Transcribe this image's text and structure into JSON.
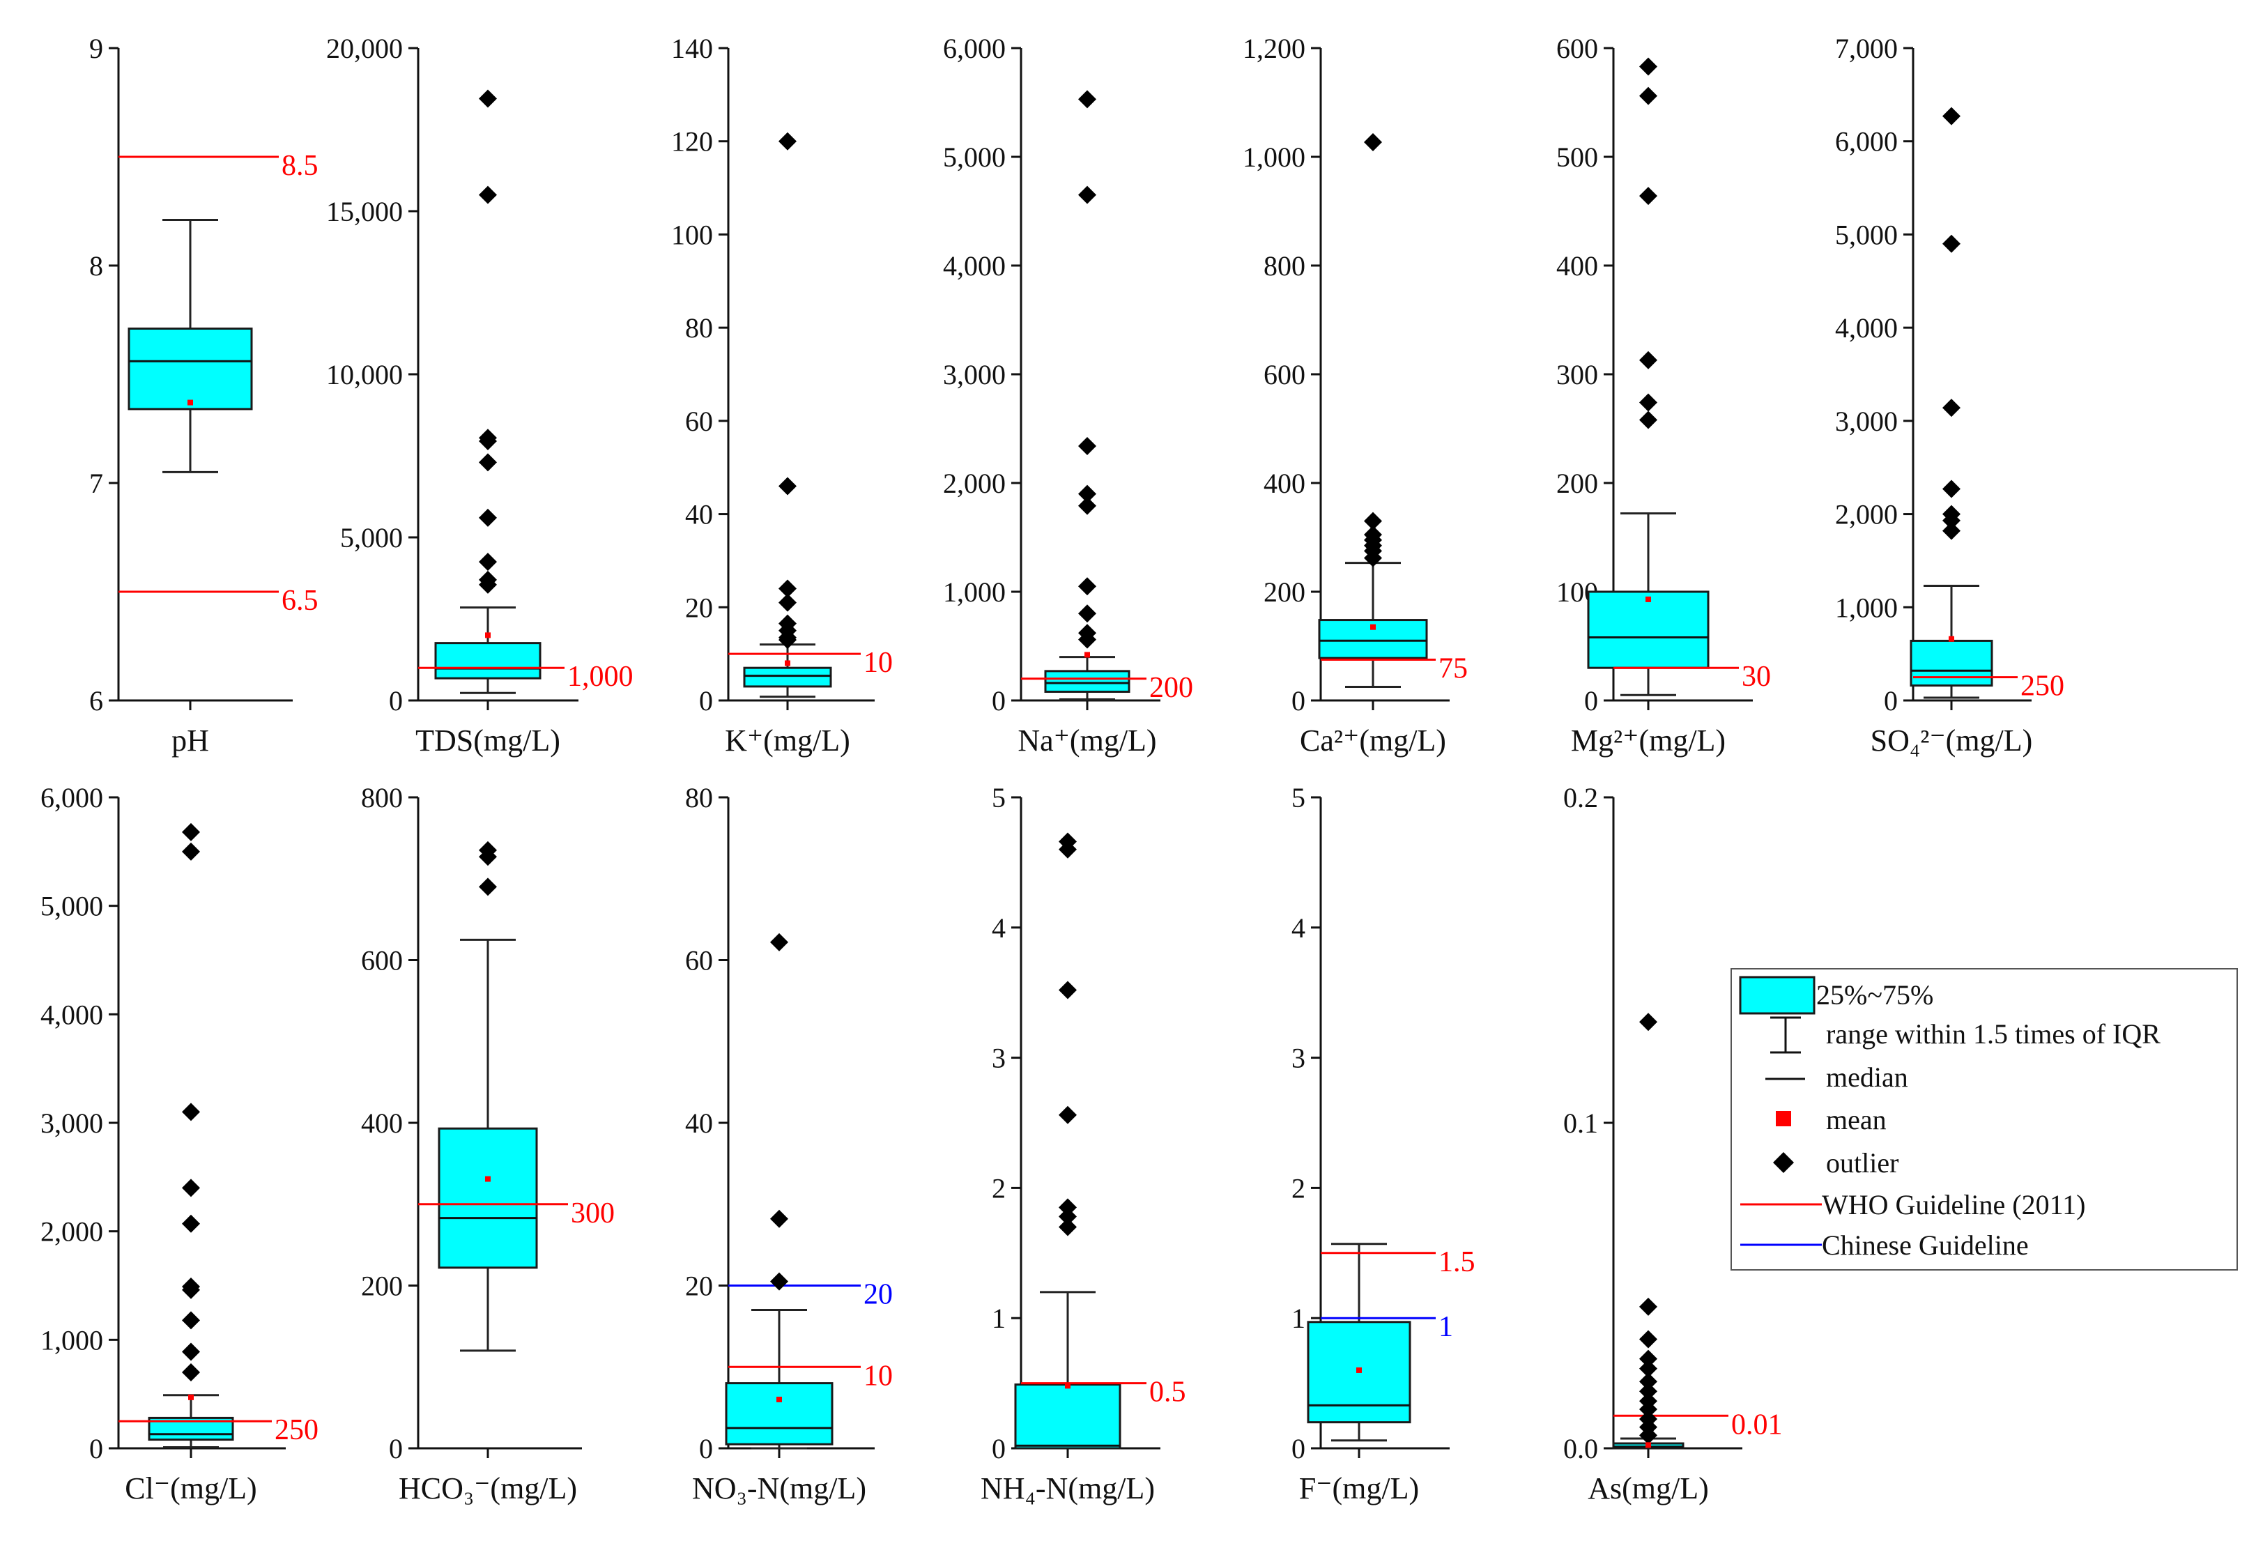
{
  "colors": {
    "box_fill": "#00ffff",
    "box_stroke": "#1a1a1a",
    "mean": "#ff0000",
    "outlier": "#000000",
    "who": "#ff0000",
    "chinese": "#0000ff"
  },
  "legend": {
    "box": "25%~75%",
    "range": "range within 1.5 times of IQR",
    "median": "median",
    "mean": "mean",
    "outlier": "outlier",
    "who": "WHO Guideline (2011)",
    "chinese": "Chinese Guideline"
  },
  "chart_data": [
    {
      "type": "box",
      "xlabel": "pH",
      "ylim": [
        6,
        9
      ],
      "ticks": [
        6,
        7,
        8,
        9
      ],
      "tick_labels": [
        "6",
        "7",
        "8",
        "9"
      ],
      "box": {
        "q1": 7.34,
        "median": 7.56,
        "q3": 7.71,
        "whisker_low": 7.05,
        "whisker_high": 8.21,
        "mean": 7.37
      },
      "outliers": [],
      "guides": [
        {
          "value": 8.5,
          "label": "8.5",
          "kind": "who"
        },
        {
          "value": 6.5,
          "label": "6.5",
          "kind": "who"
        }
      ]
    },
    {
      "type": "box",
      "xlabel": "TDS(mg/L)",
      "ylim": [
        0,
        20000
      ],
      "ticks": [
        0,
        5000,
        10000,
        15000,
        20000
      ],
      "tick_labels": [
        "0",
        "5,000",
        "10,000",
        "15,000",
        "20,000"
      ],
      "box": {
        "q1": 680,
        "median": 980,
        "q3": 1760,
        "whisker_low": 230,
        "whisker_high": 2850,
        "mean": 2000
      },
      "outliers": [
        18450,
        15500,
        8050,
        7950,
        7300,
        5600,
        4250,
        3700,
        3550
      ],
      "guides": [
        {
          "value": 1000,
          "label": "1,000",
          "kind": "who"
        }
      ]
    },
    {
      "type": "box",
      "xlabel": "K⁺(mg/L)",
      "ylim": [
        0,
        140
      ],
      "ticks": [
        0,
        20,
        40,
        60,
        80,
        100,
        120,
        140
      ],
      "tick_labels": [
        "0",
        "20",
        "40",
        "60",
        "80",
        "100",
        "120",
        "140"
      ],
      "box": {
        "q1": 3,
        "median": 5.3,
        "q3": 7,
        "whisker_low": 0.8,
        "whisker_high": 12,
        "mean": 8
      },
      "outliers": [
        120,
        46,
        24,
        21,
        16.5,
        15,
        13.5,
        13
      ],
      "guides": [
        {
          "value": 10,
          "label": "10",
          "kind": "who"
        }
      ]
    },
    {
      "type": "box",
      "xlabel": "Na⁺(mg/L)",
      "ylim": [
        0,
        6000
      ],
      "ticks": [
        0,
        1000,
        2000,
        3000,
        4000,
        5000,
        6000
      ],
      "tick_labels": [
        "0",
        "1,000",
        "2,000",
        "3,000",
        "4,000",
        "5,000",
        "6,000"
      ],
      "box": {
        "q1": 80,
        "median": 160,
        "q3": 270,
        "whisker_low": 10,
        "whisker_high": 400,
        "mean": 420
      },
      "outliers": [
        5530,
        4650,
        2340,
        1900,
        1790,
        1050,
        800,
        620,
        560
      ],
      "guides": [
        {
          "value": 200,
          "label": "200",
          "kind": "who"
        }
      ]
    },
    {
      "type": "box",
      "xlabel": "Ca²⁺(mg/L)",
      "ylim": [
        0,
        1200
      ],
      "ticks": [
        0,
        200,
        400,
        600,
        800,
        1000,
        1200
      ],
      "tick_labels": [
        "0",
        "200",
        "400",
        "600",
        "800",
        "1,000",
        "1,200"
      ],
      "box": {
        "q1": 78,
        "median": 110,
        "q3": 148,
        "whisker_low": 25,
        "whisker_high": 253,
        "mean": 135
      },
      "outliers": [
        1027,
        330,
        305,
        295,
        285,
        275,
        262
      ],
      "guides": [
        {
          "value": 75,
          "label": "75",
          "kind": "who"
        }
      ]
    },
    {
      "type": "box",
      "xlabel": "Mg²⁺(mg/L)",
      "ylim": [
        0,
        600
      ],
      "ticks": [
        0,
        100,
        200,
        300,
        400,
        500,
        600
      ],
      "tick_labels": [
        "0",
        "100",
        "200",
        "300",
        "400",
        "500",
        "600"
      ],
      "box": {
        "q1": 30,
        "median": 58,
        "q3": 100,
        "whisker_low": 5,
        "whisker_high": 172,
        "mean": 93
      },
      "outliers": [
        583,
        556,
        464,
        313,
        274,
        258
      ],
      "guides": [
        {
          "value": 30,
          "label": "30",
          "kind": "who"
        }
      ]
    },
    {
      "type": "box",
      "xlabel": "SO₄²⁻(mg/L)",
      "ylim": [
        0,
        7000
      ],
      "ticks": [
        0,
        1000,
        2000,
        3000,
        4000,
        5000,
        6000,
        7000
      ],
      "tick_labels": [
        "0",
        "1,000",
        "2,000",
        "3,000",
        "4,000",
        "5,000",
        "6,000",
        "7,000"
      ],
      "box": {
        "q1": 160,
        "median": 320,
        "q3": 640,
        "whisker_low": 30,
        "whisker_high": 1230,
        "mean": 660
      },
      "outliers": [
        6270,
        4900,
        3140,
        2270,
        2000,
        1930,
        1820
      ],
      "guides": [
        {
          "value": 250,
          "label": "250",
          "kind": "who"
        }
      ]
    },
    {
      "type": "box",
      "xlabel": "Cl⁻(mg/L)",
      "ylim": [
        0,
        6000
      ],
      "ticks": [
        0,
        1000,
        2000,
        3000,
        4000,
        5000,
        6000
      ],
      "tick_labels": [
        "0",
        "1,000",
        "2,000",
        "3,000",
        "4,000",
        "5,000",
        "6,000"
      ],
      "box": {
        "q1": 80,
        "median": 130,
        "q3": 280,
        "whisker_low": 10,
        "whisker_high": 490,
        "mean": 470
      },
      "outliers": [
        5680,
        5500,
        3100,
        2400,
        2070,
        1490,
        1460,
        1180,
        890,
        700
      ],
      "guides": [
        {
          "value": 250,
          "label": "250",
          "kind": "who"
        }
      ]
    },
    {
      "type": "box",
      "xlabel": "HCO₃⁻(mg/L)",
      "ylim": [
        0,
        800
      ],
      "ticks": [
        0,
        200,
        400,
        600,
        800
      ],
      "tick_labels": [
        "0",
        "200",
        "400",
        "600",
        "800"
      ],
      "box": {
        "q1": 222,
        "median": 283,
        "q3": 393,
        "whisker_low": 120,
        "whisker_high": 625,
        "mean": 331
      },
      "outliers": [
        735,
        727,
        690
      ],
      "guides": [
        {
          "value": 300,
          "label": "300",
          "kind": "who"
        }
      ]
    },
    {
      "type": "box",
      "xlabel": "NO₃-N(mg/L)",
      "ylim": [
        0,
        80
      ],
      "ticks": [
        0,
        20,
        40,
        60,
        80
      ],
      "tick_labels": [
        "0",
        "20",
        "40",
        "60",
        "80"
      ],
      "box": {
        "q1": 0.5,
        "median": 2.5,
        "q3": 8,
        "whisker_low": 0,
        "whisker_high": 17,
        "mean": 6
      },
      "outliers": [
        62.2,
        28.2,
        20.5
      ],
      "guides": [
        {
          "value": 20,
          "label": "20",
          "kind": "chinese"
        },
        {
          "value": 10,
          "label": "10",
          "kind": "who"
        }
      ]
    },
    {
      "type": "box",
      "xlabel": "NH₄-N(mg/L)",
      "ylim": [
        0,
        5
      ],
      "ticks": [
        0,
        1,
        2,
        3,
        4,
        5
      ],
      "tick_labels": [
        "0",
        "1",
        "2",
        "3",
        "4",
        "5"
      ],
      "box": {
        "q1": 0,
        "median": 0.02,
        "q3": 0.49,
        "whisker_low": 0,
        "whisker_high": 1.2,
        "mean": 0.48
      },
      "outliers": [
        4.66,
        4.6,
        3.52,
        2.56,
        1.85,
        1.78,
        1.7
      ],
      "guides": [
        {
          "value": 0.5,
          "label": "0.5",
          "kind": "who"
        }
      ]
    },
    {
      "type": "box",
      "xlabel": "F⁻(mg/L)",
      "ylim": [
        0,
        5
      ],
      "ticks": [
        0,
        1,
        2,
        3,
        4,
        5
      ],
      "tick_labels": [
        "0",
        "1",
        "2",
        "3",
        "4",
        "5"
      ],
      "box": {
        "q1": 0.2,
        "median": 0.33,
        "q3": 0.97,
        "whisker_low": 0.06,
        "whisker_high": 1.57,
        "mean": 0.6
      },
      "outliers": [],
      "guides": [
        {
          "value": 1.5,
          "label": "1.5",
          "kind": "who"
        },
        {
          "value": 1,
          "label": "1",
          "kind": "chinese"
        }
      ]
    },
    {
      "type": "box",
      "xlabel": "As(mg/L)",
      "ylim": [
        0,
        0.2
      ],
      "ticks": [
        0,
        0.1,
        0.2
      ],
      "tick_labels": [
        "0.0",
        "0.1",
        "0.2"
      ],
      "box": {
        "q1": 0,
        "median": 0.0005,
        "q3": 0.0015,
        "whisker_low": 0,
        "whisker_high": 0.003,
        "mean": 0.001
      },
      "outliers": [
        0.131,
        0.0435,
        0.0335,
        0.0275,
        0.0245,
        0.0205,
        0.0175,
        0.0145,
        0.012,
        0.009,
        0.0065,
        0.004
      ],
      "guides": [
        {
          "value": 0.01,
          "label": "0.01",
          "kind": "who"
        }
      ]
    }
  ]
}
